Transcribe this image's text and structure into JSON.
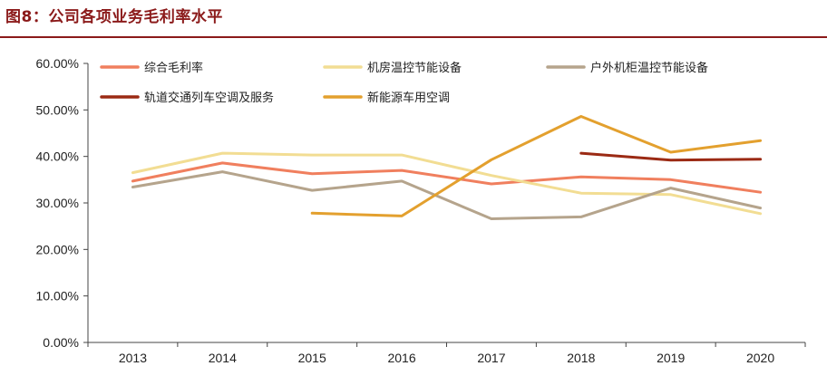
{
  "title": "图8：公司各项业务毛利率水平",
  "chart_data": {
    "type": "line",
    "categories": [
      "2013",
      "2014",
      "2015",
      "2016",
      "2017",
      "2018",
      "2019",
      "2020"
    ],
    "y_ticks": [
      "0.00%",
      "10.00%",
      "20.00%",
      "30.00%",
      "40.00%",
      "50.00%",
      "60.00%"
    ],
    "ylim": [
      0,
      60
    ],
    "grid": false,
    "legend_position": "top",
    "series": [
      {
        "name": "综合毛利率",
        "color": "#f07f5e",
        "values": [
          34.7,
          38.6,
          36.3,
          37.0,
          34.1,
          35.6,
          35.0,
          32.3
        ]
      },
      {
        "name": "机房温控节能设备",
        "color": "#f2dd93",
        "values": [
          36.5,
          40.7,
          40.3,
          40.3,
          35.9,
          32.1,
          31.8,
          27.7
        ]
      },
      {
        "name": "户外机柜温控节能设备",
        "color": "#b5a48c",
        "values": [
          33.4,
          36.7,
          32.7,
          34.7,
          26.6,
          27.0,
          33.2,
          28.9
        ]
      },
      {
        "name": "轨道交通列车空调及服务",
        "color": "#9b2a14",
        "values": [
          null,
          null,
          null,
          null,
          null,
          40.7,
          39.2,
          39.4
        ]
      },
      {
        "name": "新能源车用空调",
        "color": "#e3a02e",
        "values": [
          null,
          null,
          27.8,
          27.2,
          39.3,
          48.6,
          40.9,
          43.4
        ]
      }
    ]
  }
}
